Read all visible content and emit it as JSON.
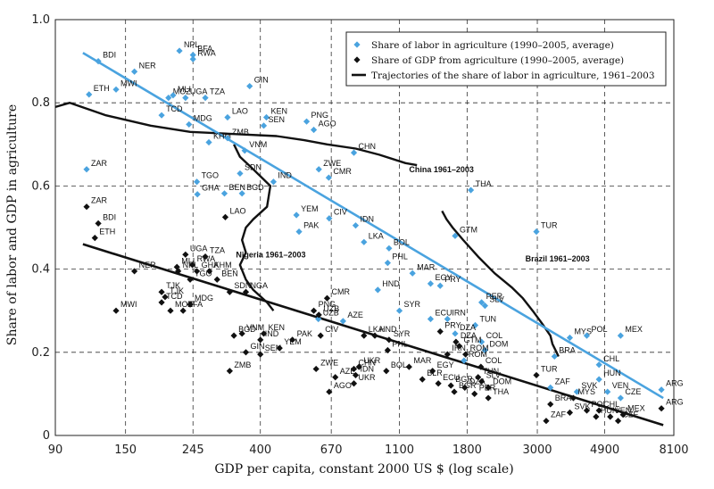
{
  "chart_data": {
    "type": "scatter",
    "xlabel": "GDP per capita, constant 2000 US $ (log scale)",
    "ylabel": "Share of labor and GDP in agriculture",
    "x_scale": "log",
    "xlim": [
      90,
      8100
    ],
    "ylim": [
      0,
      1.0
    ],
    "x_ticks": [
      90,
      150,
      245,
      400,
      670,
      1100,
      1800,
      3000,
      4900,
      8100
    ],
    "y_ticks": [
      0,
      0.2,
      0.4,
      0.6,
      0.8,
      1.0
    ],
    "y_tick_labels": [
      "0",
      "0.2",
      "0.4",
      "0.6",
      "0.8",
      "1.0"
    ],
    "grid": true,
    "legend_position": "top-right",
    "legend": [
      {
        "label": "Share of labor in agriculture (1990–2005, average)",
        "marker": "diamond",
        "color": "#4aa3df"
      },
      {
        "label": "Share of GDP from agriculture (1990–2005, average)",
        "marker": "diamond",
        "color": "#111111"
      },
      {
        "label": "Trajectories of the share of labor in agriculture, 1961–2003",
        "marker": "line",
        "color": "#111111"
      }
    ],
    "colors": {
      "labor": "#4aa3df",
      "gdp": "#111111",
      "trajectory": "#111111",
      "grid": "#333333"
    },
    "series": [
      {
        "name": "Share of labor in agriculture (1990–2005, average)",
        "points": [
          {
            "label": "BDI",
            "x": 123,
            "y": 0.9
          },
          {
            "label": "NPL",
            "x": 222,
            "y": 0.925
          },
          {
            "label": "BFA",
            "x": 245,
            "y": 0.915
          },
          {
            "label": "RWA",
            "x": 245,
            "y": 0.905
          },
          {
            "label": "NER",
            "x": 160,
            "y": 0.875
          },
          {
            "label": "GIN",
            "x": 370,
            "y": 0.84
          },
          {
            "label": "ETH",
            "x": 115,
            "y": 0.82
          },
          {
            "label": "MWI",
            "x": 140,
            "y": 0.832
          },
          {
            "label": "MOZ",
            "x": 205,
            "y": 0.812
          },
          {
            "label": "MLI",
            "x": 212,
            "y": 0.818
          },
          {
            "label": "UGA",
            "x": 232,
            "y": 0.812
          },
          {
            "label": "TZA",
            "x": 268,
            "y": 0.812
          },
          {
            "label": "TCD",
            "x": 195,
            "y": 0.77
          },
          {
            "label": "MDG",
            "x": 238,
            "y": 0.748
          },
          {
            "label": "LAO",
            "x": 315,
            "y": 0.765
          },
          {
            "label": "KEN",
            "x": 418,
            "y": 0.765
          },
          {
            "label": "SEN",
            "x": 410,
            "y": 0.745
          },
          {
            "label": "PNG",
            "x": 560,
            "y": 0.755
          },
          {
            "label": "AGO",
            "x": 590,
            "y": 0.735
          },
          {
            "label": "KHM",
            "x": 275,
            "y": 0.705
          },
          {
            "label": "ZMB",
            "x": 315,
            "y": 0.715
          },
          {
            "label": "CHN",
            "x": 790,
            "y": 0.68
          },
          {
            "label": "VNM",
            "x": 357,
            "y": 0.685
          },
          {
            "label": "ZAR",
            "x": 113,
            "y": 0.64
          },
          {
            "label": "ZWE",
            "x": 612,
            "y": 0.64
          },
          {
            "label": "SDN",
            "x": 345,
            "y": 0.63
          },
          {
            "label": "CMR",
            "x": 658,
            "y": 0.62
          },
          {
            "label": "IND",
            "x": 440,
            "y": 0.61
          },
          {
            "label": "TGO",
            "x": 252,
            "y": 0.61
          },
          {
            "label": "THA",
            "x": 1850,
            "y": 0.59
          },
          {
            "label": "GHA",
            "x": 253,
            "y": 0.58
          },
          {
            "label": "BEN",
            "x": 308,
            "y": 0.582
          },
          {
            "label": "BGD",
            "x": 350,
            "y": 0.582
          },
          {
            "label": "YEM",
            "x": 520,
            "y": 0.53
          },
          {
            "label": "CIV",
            "x": 660,
            "y": 0.522
          },
          {
            "label": "IDN",
            "x": 800,
            "y": 0.505
          },
          {
            "label": "PAK",
            "x": 530,
            "y": 0.49
          },
          {
            "label": "TUR",
            "x": 2980,
            "y": 0.49
          },
          {
            "label": "GTM",
            "x": 1650,
            "y": 0.48
          },
          {
            "label": "LKA",
            "x": 850,
            "y": 0.465
          },
          {
            "label": "BOL",
            "x": 1020,
            "y": 0.45
          },
          {
            "label": "PHL",
            "x": 1010,
            "y": 0.415
          },
          {
            "label": "MAR",
            "x": 1210,
            "y": 0.39
          },
          {
            "label": "EGY",
            "x": 1380,
            "y": 0.365
          },
          {
            "label": "PRY",
            "x": 1480,
            "y": 0.36
          },
          {
            "label": "HND",
            "x": 940,
            "y": 0.35
          },
          {
            "label": "PER",
            "x": 2000,
            "y": 0.32
          },
          {
            "label": "SLV",
            "x": 2050,
            "y": 0.312
          },
          {
            "label": "SYR",
            "x": 1100,
            "y": 0.3
          },
          {
            "label": "UZB",
            "x": 610,
            "y": 0.28
          },
          {
            "label": "AZE",
            "x": 730,
            "y": 0.275
          },
          {
            "label": "ECU",
            "x": 1380,
            "y": 0.28
          },
          {
            "label": "IRN",
            "x": 1560,
            "y": 0.28
          },
          {
            "label": "TUN",
            "x": 1910,
            "y": 0.265
          },
          {
            "label": "DZA",
            "x": 1650,
            "y": 0.245
          },
          {
            "label": "COL",
            "x": 2000,
            "y": 0.225
          },
          {
            "label": "MYS",
            "x": 3800,
            "y": 0.235
          },
          {
            "label": "POL",
            "x": 4300,
            "y": 0.24
          },
          {
            "label": "MEX",
            "x": 5500,
            "y": 0.24
          },
          {
            "label": "DOM",
            "x": 2050,
            "y": 0.205
          },
          {
            "label": "ROM",
            "x": 1760,
            "y": 0.18
          },
          {
            "label": "BRA",
            "x": 3400,
            "y": 0.19
          },
          {
            "label": "CHL",
            "x": 4700,
            "y": 0.17
          },
          {
            "label": "HUN",
            "x": 4700,
            "y": 0.135
          },
          {
            "label": "ZAF",
            "x": 3300,
            "y": 0.115
          },
          {
            "label": "SVK",
            "x": 4000,
            "y": 0.105
          },
          {
            "label": "VEN",
            "x": 5000,
            "y": 0.105
          },
          {
            "label": "CZE",
            "x": 5500,
            "y": 0.09
          },
          {
            "label": "ARG",
            "x": 7400,
            "y": 0.11
          }
        ]
      },
      {
        "name": "Share of GDP from agriculture (1990–2005, average)",
        "points": [
          {
            "label": "ZAR",
            "x": 113,
            "y": 0.55
          },
          {
            "label": "BDI",
            "x": 123,
            "y": 0.51
          },
          {
            "label": "ETH",
            "x": 120,
            "y": 0.475
          },
          {
            "label": "NER",
            "x": 160,
            "y": 0.395
          },
          {
            "label": "UGA",
            "x": 232,
            "y": 0.435
          },
          {
            "label": "TZA",
            "x": 268,
            "y": 0.43
          },
          {
            "label": "RWA",
            "x": 244,
            "y": 0.41
          },
          {
            "label": "MLI",
            "x": 218,
            "y": 0.405
          },
          {
            "label": "NPL",
            "x": 220,
            "y": 0.395
          },
          {
            "label": "GHA",
            "x": 252,
            "y": 0.395
          },
          {
            "label": "KHM",
            "x": 276,
            "y": 0.395
          },
          {
            "label": "TGO",
            "x": 240,
            "y": 0.375
          },
          {
            "label": "BEN",
            "x": 292,
            "y": 0.375
          },
          {
            "label": "TJK",
            "x": 195,
            "y": 0.345
          },
          {
            "label": "SDN",
            "x": 320,
            "y": 0.345
          },
          {
            "label": "NGA",
            "x": 360,
            "y": 0.345
          },
          {
            "label": "TCD",
            "x": 195,
            "y": 0.32
          },
          {
            "label": "TJK",
            "x": 200,
            "y": 0.333
          },
          {
            "label": "MDG",
            "x": 240,
            "y": 0.315
          },
          {
            "label": "MOZ",
            "x": 208,
            "y": 0.3
          },
          {
            "label": "BFA",
            "x": 228,
            "y": 0.3
          },
          {
            "label": "MWI",
            "x": 140,
            "y": 0.3
          },
          {
            "label": "LAO",
            "x": 310,
            "y": 0.525
          },
          {
            "label": "PNG",
            "x": 590,
            "y": 0.3
          },
          {
            "label": "CMR",
            "x": 650,
            "y": 0.33
          },
          {
            "label": "UZB",
            "x": 612,
            "y": 0.29
          },
          {
            "label": "CIV",
            "x": 620,
            "y": 0.24
          },
          {
            "label": "VNM",
            "x": 350,
            "y": 0.245
          },
          {
            "label": "BGD",
            "x": 330,
            "y": 0.24
          },
          {
            "label": "KEN",
            "x": 410,
            "y": 0.245
          },
          {
            "label": "PAK",
            "x": 505,
            "y": 0.23
          },
          {
            "label": "IND",
            "x": 400,
            "y": 0.23
          },
          {
            "label": "GIN",
            "x": 360,
            "y": 0.2
          },
          {
            "label": "SEN",
            "x": 400,
            "y": 0.195
          },
          {
            "label": "YEM",
            "x": 460,
            "y": 0.21
          },
          {
            "label": "ZMB",
            "x": 320,
            "y": 0.155
          },
          {
            "label": "LKA",
            "x": 850,
            "y": 0.24
          },
          {
            "label": "HND",
            "x": 920,
            "y": 0.24
          },
          {
            "label": "SYR",
            "x": 1020,
            "y": 0.23
          },
          {
            "label": "PHL",
            "x": 1010,
            "y": 0.205
          },
          {
            "label": "ZWE",
            "x": 600,
            "y": 0.16
          },
          {
            "label": "CHN",
            "x": 790,
            "y": 0.16
          },
          {
            "label": "UKR",
            "x": 820,
            "y": 0.165
          },
          {
            "label": "AZE",
            "x": 690,
            "y": 0.14
          },
          {
            "label": "IDN",
            "x": 800,
            "y": 0.145
          },
          {
            "label": "UKR",
            "x": 790,
            "y": 0.125
          },
          {
            "label": "AGO",
            "x": 660,
            "y": 0.105
          },
          {
            "label": "BOL",
            "x": 1000,
            "y": 0.155
          },
          {
            "label": "MAR",
            "x": 1180,
            "y": 0.165
          },
          {
            "label": "BLR",
            "x": 1300,
            "y": 0.135
          },
          {
            "label": "EGY",
            "x": 1400,
            "y": 0.155
          },
          {
            "label": "IRN",
            "x": 1560,
            "y": 0.195
          },
          {
            "label": "PRY",
            "x": 1480,
            "y": 0.25
          },
          {
            "label": "DZA",
            "x": 1660,
            "y": 0.225
          },
          {
            "label": "GTM",
            "x": 1700,
            "y": 0.215
          },
          {
            "label": "ROM",
            "x": 1780,
            "y": 0.195
          },
          {
            "label": "ECU",
            "x": 1460,
            "y": 0.125
          },
          {
            "label": "BGR",
            "x": 1600,
            "y": 0.12
          },
          {
            "label": "BGR",
            "x": 1640,
            "y": 0.105
          },
          {
            "label": "DZA",
            "x": 1770,
            "y": 0.115
          },
          {
            "label": "COL",
            "x": 1990,
            "y": 0.165
          },
          {
            "label": "TUN",
            "x": 1950,
            "y": 0.14
          },
          {
            "label": "SLV",
            "x": 2000,
            "y": 0.13
          },
          {
            "label": "DOM",
            "x": 2100,
            "y": 0.115
          },
          {
            "label": "PER",
            "x": 1900,
            "y": 0.1
          },
          {
            "label": "THA",
            "x": 2100,
            "y": 0.09
          },
          {
            "label": "TUR",
            "x": 2980,
            "y": 0.145
          },
          {
            "label": "BRA",
            "x": 3300,
            "y": 0.075
          },
          {
            "label": "ZAF",
            "x": 3200,
            "y": 0.035
          },
          {
            "label": "SVK",
            "x": 3800,
            "y": 0.055
          },
          {
            "label": "MYS",
            "x": 3900,
            "y": 0.09
          },
          {
            "label": "POL",
            "x": 4300,
            "y": 0.06
          },
          {
            "label": "HUN",
            "x": 4600,
            "y": 0.045
          },
          {
            "label": "CHL",
            "x": 4700,
            "y": 0.06
          },
          {
            "label": "VEN",
            "x": 5100,
            "y": 0.045
          },
          {
            "label": "MEX",
            "x": 5600,
            "y": 0.05
          },
          {
            "label": "CZE",
            "x": 5400,
            "y": 0.035
          },
          {
            "label": "ARG",
            "x": 7400,
            "y": 0.065
          }
        ]
      }
    ],
    "fit_lines": [
      {
        "series": "labor",
        "x": [
          110,
          7500
        ],
        "y": [
          0.92,
          0.09
        ]
      },
      {
        "series": "gdp",
        "x": [
          110,
          7500
        ],
        "y": [
          0.46,
          0.025
        ]
      }
    ],
    "trajectories": [
      {
        "label": "China 1961–2003",
        "points": [
          [
            90,
            0.79
          ],
          [
            100,
            0.8
          ],
          [
            130,
            0.77
          ],
          [
            180,
            0.745
          ],
          [
            240,
            0.73
          ],
          [
            330,
            0.725
          ],
          [
            450,
            0.72
          ],
          [
            550,
            0.71
          ],
          [
            650,
            0.7
          ],
          [
            800,
            0.69
          ],
          [
            950,
            0.675
          ],
          [
            1150,
            0.655
          ],
          [
            1250,
            0.65
          ]
        ]
      },
      {
        "label": "Brazil 1961–2003",
        "points": [
          [
            1500,
            0.54
          ],
          [
            1550,
            0.52
          ],
          [
            1620,
            0.5
          ],
          [
            1750,
            0.47
          ],
          [
            1950,
            0.43
          ],
          [
            2200,
            0.39
          ],
          [
            2500,
            0.355
          ],
          [
            2700,
            0.33
          ],
          [
            2900,
            0.3
          ],
          [
            3100,
            0.27
          ],
          [
            3300,
            0.24
          ],
          [
            3350,
            0.22
          ],
          [
            3450,
            0.2
          ],
          [
            3500,
            0.19
          ]
        ]
      },
      {
        "label": "Nigeria 1961–2003",
        "points": [
          [
            330,
            0.7
          ],
          [
            345,
            0.67
          ],
          [
            380,
            0.64
          ],
          [
            430,
            0.6
          ],
          [
            420,
            0.55
          ],
          [
            380,
            0.52
          ],
          [
            360,
            0.5
          ],
          [
            350,
            0.47
          ],
          [
            360,
            0.44
          ],
          [
            345,
            0.41
          ],
          [
            360,
            0.375
          ],
          [
            380,
            0.35
          ],
          [
            420,
            0.32
          ],
          [
            440,
            0.3
          ]
        ]
      }
    ]
  }
}
